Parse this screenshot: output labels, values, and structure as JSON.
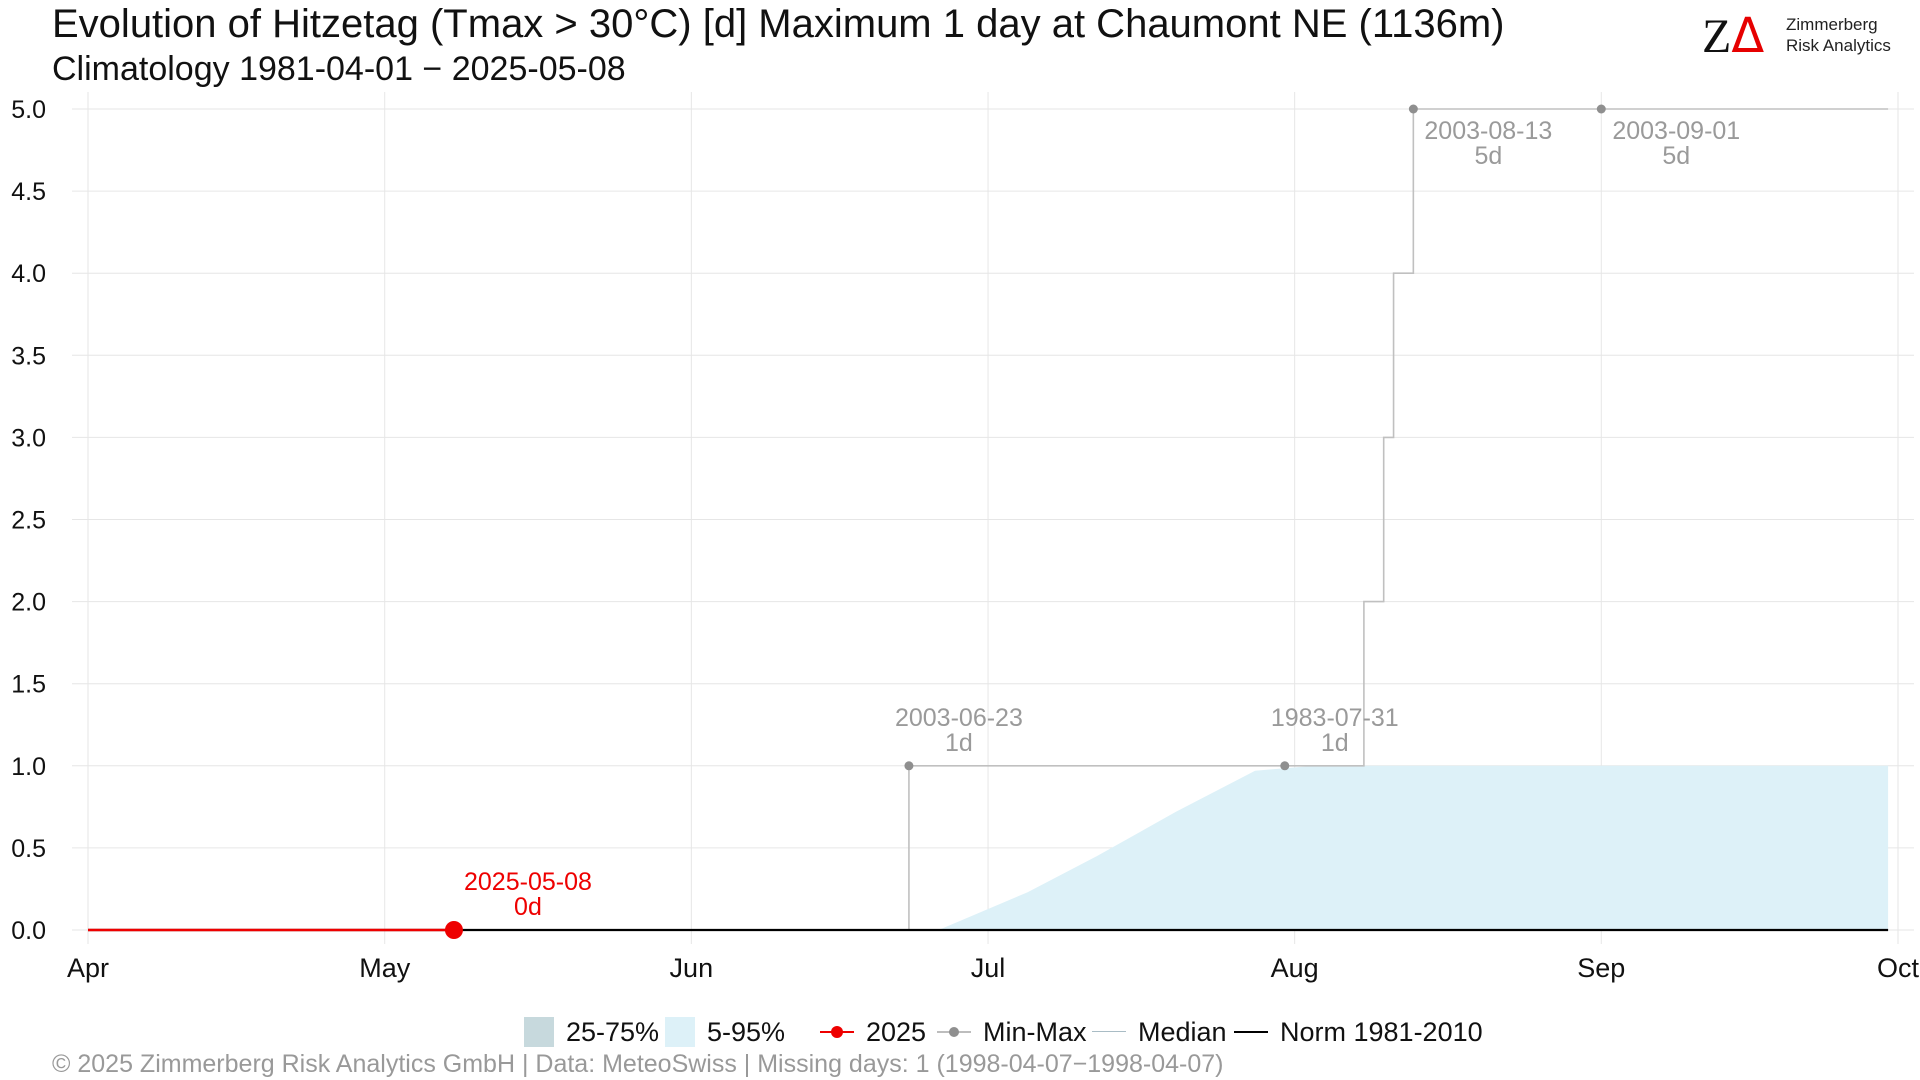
{
  "header": {
    "title": "Evolution of Hitzetag (Tmax > 30°C) [d] Maximum 1 day at Chaumont  NE (1136m)",
    "subtitle": "Climatology 1981-04-01 − 2025-05-08"
  },
  "logo": {
    "mark": "Z",
    "mark_delta": "Δ",
    "line1": "Zimmerberg",
    "line2": "Risk Analytics"
  },
  "legend": {
    "items": [
      {
        "key": "iqr",
        "label": "25-75%"
      },
      {
        "key": "p90",
        "label": "5-95%"
      },
      {
        "key": "current",
        "label": "2025"
      },
      {
        "key": "minmax",
        "label": "Min-Max"
      },
      {
        "key": "median",
        "label": "Median"
      },
      {
        "key": "norm",
        "label": "Norm 1981-2010"
      }
    ]
  },
  "caption": "©  2025 Zimmerberg Risk Analytics GmbH | Data: MeteoSwiss | Missing days: 1 (1998-04-07−1998-04-07)",
  "colors": {
    "current": "#ee0000",
    "max_line": "#c0c0c0",
    "max_points": "#8f8f8f",
    "annotation": "#9a9a9a",
    "band_5_95": "#ddf1f8",
    "band_25_75": "#c7d9dd",
    "norm": "#000000",
    "grid": "#e6e6e6"
  },
  "chart_data": {
    "type": "line",
    "x_axis": {
      "domain": [
        "2025-04-01",
        "2025-10-01"
      ],
      "ticks": [
        {
          "date": "2025-04-01",
          "label": "Apr"
        },
        {
          "date": "2025-05-01",
          "label": "May"
        },
        {
          "date": "2025-06-01",
          "label": "Jun"
        },
        {
          "date": "2025-07-01",
          "label": "Jul"
        },
        {
          "date": "2025-08-01",
          "label": "Aug"
        },
        {
          "date": "2025-09-01",
          "label": "Sep"
        },
        {
          "date": "2025-10-01",
          "label": "Oct"
        }
      ]
    },
    "y_axis": {
      "ylim": [
        0,
        5
      ],
      "ticks": [
        "0.0",
        "0.5",
        "1.0",
        "1.5",
        "2.0",
        "2.5",
        "3.0",
        "3.5",
        "4.0",
        "4.5",
        "5.0"
      ]
    },
    "grid": true,
    "legend_position": "bottom",
    "series": [
      {
        "name": "2025",
        "kind": "line",
        "points": [
          [
            "2025-04-01",
            0
          ],
          [
            "2025-05-08",
            0
          ]
        ]
      },
      {
        "name": "Min-Max",
        "kind": "step",
        "points": [
          [
            "2025-06-23",
            0
          ],
          [
            "2025-06-23",
            1
          ],
          [
            "2025-08-08",
            1
          ],
          [
            "2025-08-08",
            2
          ],
          [
            "2025-08-10",
            2
          ],
          [
            "2025-08-10",
            3
          ],
          [
            "2025-08-11",
            3
          ],
          [
            "2025-08-11",
            4
          ],
          [
            "2025-08-13",
            4
          ],
          [
            "2025-08-13",
            5
          ],
          [
            "2025-09-30",
            5
          ]
        ]
      },
      {
        "name": "5-95%",
        "kind": "area",
        "points": [
          [
            "2025-06-26",
            0
          ],
          [
            "2025-07-05",
            0.23
          ],
          [
            "2025-07-12",
            0.45
          ],
          [
            "2025-07-20",
            0.72
          ],
          [
            "2025-07-28",
            0.97
          ],
          [
            "2025-08-03",
            1.0
          ],
          [
            "2025-09-30",
            1.0
          ]
        ]
      },
      {
        "name": "Norm 1981-2010",
        "kind": "line",
        "points": [
          [
            "2025-04-01",
            0
          ],
          [
            "2025-09-30",
            0
          ]
        ]
      }
    ],
    "annotations": [
      {
        "date": "2025-05-08",
        "value": 0,
        "line1": "2025-05-08",
        "line2": "0d",
        "style": "current"
      },
      {
        "date": "2025-06-23",
        "value": 1,
        "line1": "2003-06-23",
        "line2": "1d",
        "style": "max"
      },
      {
        "date": "2025-07-31",
        "value": 1,
        "line1": "1983-07-31",
        "line2": "1d",
        "style": "max"
      },
      {
        "date": "2025-08-13",
        "value": 5,
        "line1": "2003-08-13",
        "line2": "5d",
        "style": "max"
      },
      {
        "date": "2025-09-01",
        "value": 5,
        "line1": "2003-09-01",
        "line2": "5d",
        "style": "max"
      }
    ]
  }
}
